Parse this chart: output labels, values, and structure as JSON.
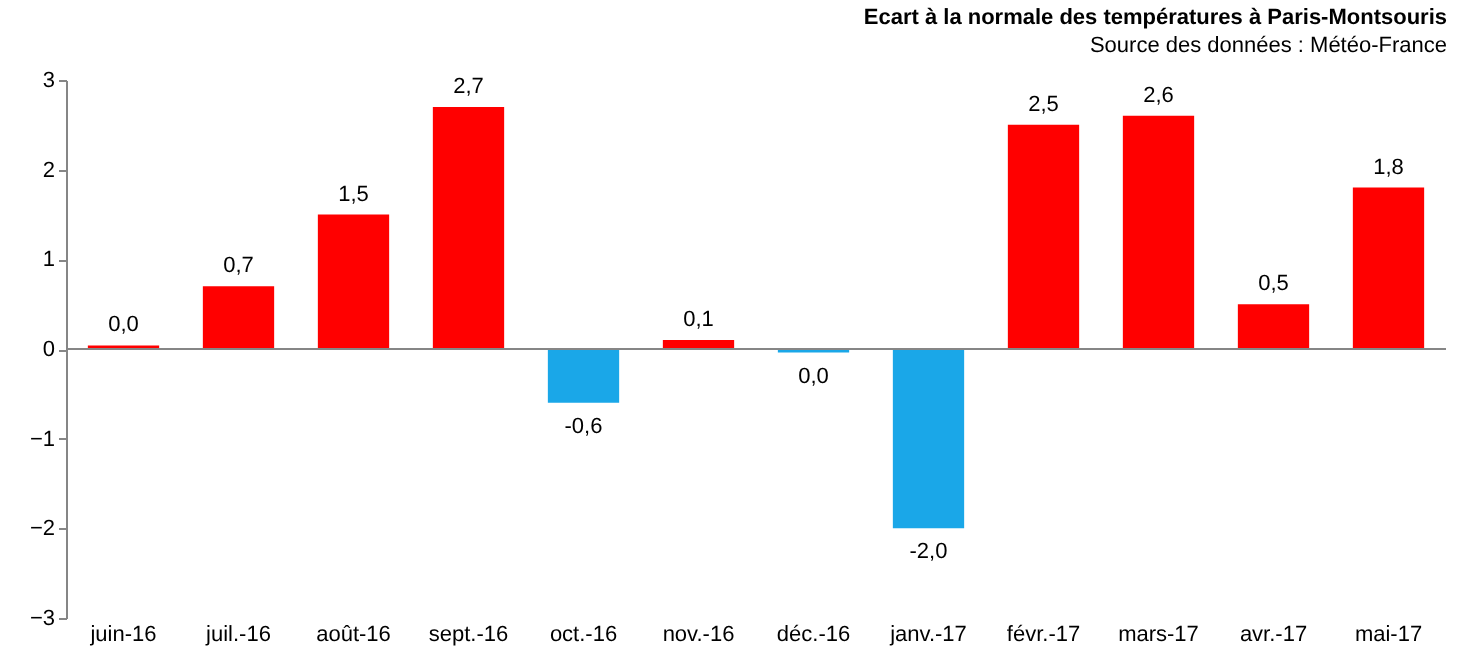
{
  "chart_data": {
    "type": "bar",
    "title": "Ecart à la normale des températures à Paris-Montsouris",
    "subtitle": "Source des données : Météo-France",
    "categories": [
      "juin-16",
      "juil.-16",
      "août-16",
      "sept.-16",
      "oct.-16",
      "nov.-16",
      "déc.-16",
      "janv.-17",
      "févr.-17",
      "mars-17",
      "avr.-17",
      "mai-17"
    ],
    "values": [
      0.04,
      0.7,
      1.5,
      2.7,
      -0.6,
      0.1,
      -0.04,
      -2.0,
      2.5,
      2.6,
      0.5,
      1.8
    ],
    "colors": [
      "#ff0000",
      "#ff0000",
      "#ff0000",
      "#ff0000",
      "#1aa7e8",
      "#ff0000",
      "#1aa7e8",
      "#1aa7e8",
      "#ff0000",
      "#ff0000",
      "#ff0000",
      "#ff0000"
    ],
    "value_labels": [
      "0,0",
      "0,7",
      "1,5",
      "2,7",
      "-0,6",
      "0,1",
      "0,0",
      "-2,0",
      "2,5",
      "2,6",
      "0,5",
      "1,8"
    ],
    "ylim": [
      -3,
      3
    ],
    "yticks": [
      -3,
      -2,
      -1,
      0,
      1,
      2,
      3
    ],
    "ref_lines": [
      {
        "axis": "y",
        "value": 0,
        "color": "#868686"
      }
    ],
    "grid": false
  }
}
